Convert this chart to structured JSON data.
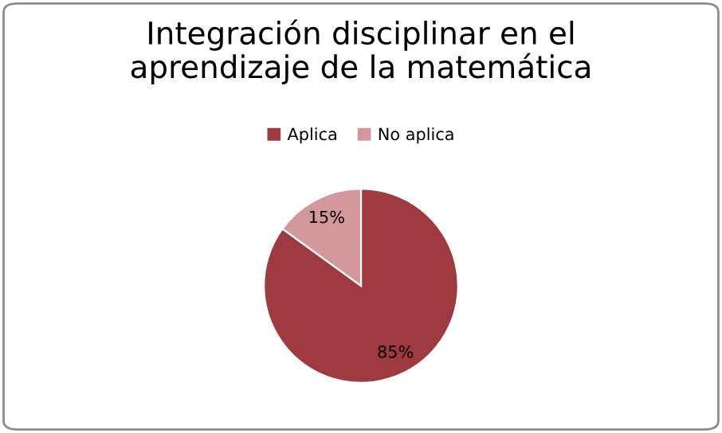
{
  "chart_data": {
    "type": "pie",
    "title": "Integración disciplinar en el\naprendizaje de la matemática",
    "categories": [
      "Aplica",
      "No aplica"
    ],
    "values": [
      85,
      15
    ],
    "colors": [
      "#9e3a40",
      "#d4979b"
    ],
    "value_labels": [
      "85%",
      "15%"
    ],
    "legend": "top"
  }
}
